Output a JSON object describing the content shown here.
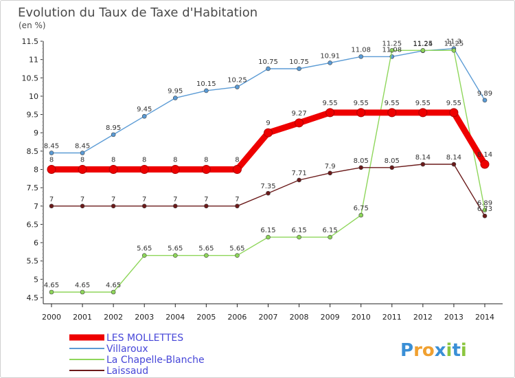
{
  "chart_data": {
    "type": "line",
    "title": "Evolution du Taux de Taxe d'Habitation",
    "subtitle": "(en %)",
    "x": [
      2000,
      2001,
      2002,
      2003,
      2004,
      2005,
      2006,
      2007,
      2008,
      2009,
      2010,
      2011,
      2012,
      2013,
      2014
    ],
    "x_tick_labels": [
      "2000",
      "2001",
      "2002",
      "2003",
      "2004",
      "2005",
      "2006",
      "2007",
      "2008",
      "2009",
      "2010",
      "2011",
      "2012",
      "2013",
      "2014"
    ],
    "ylim": [
      4.5,
      11.5
    ],
    "y_ticks": [
      4.5,
      5,
      5.5,
      6,
      6.5,
      7,
      7.5,
      8,
      8.5,
      9,
      9.5,
      10,
      10.5,
      11,
      11.5
    ],
    "y_tick_labels": [
      "4.5",
      "5",
      "5.5",
      "6",
      "6.5",
      "7",
      "7.5",
      "8",
      "8.5",
      "9",
      "9.5",
      "10",
      "10.5",
      "11",
      "11.5"
    ],
    "grid": false,
    "legend_position": "bottom-left",
    "series": [
      {
        "name": "LES MOLLETTES",
        "color": "#ee0000",
        "values": [
          8,
          8,
          8,
          8,
          8,
          8,
          8,
          9,
          9.27,
          9.55,
          9.55,
          9.55,
          9.55,
          9.55,
          8.14
        ],
        "labels": [
          "8",
          "8",
          "8",
          "8",
          "8",
          "8",
          "8",
          "9",
          "9.27",
          "9.55",
          "9.55",
          "9.55",
          "9.55",
          "9.55",
          "8.14"
        ]
      },
      {
        "name": "Villaroux",
        "color": "#5b9bd5",
        "values": [
          8.45,
          8.45,
          8.95,
          9.45,
          9.95,
          10.15,
          10.25,
          10.75,
          10.75,
          10.91,
          11.08,
          11.08,
          11.24,
          11.3,
          9.89
        ],
        "labels": [
          "8.45",
          "8.45",
          "8.95",
          "9.45",
          "9.95",
          "10.15",
          "10.25",
          "10.75",
          "10.75",
          "10.91",
          "11.08",
          "11.08",
          "11.24",
          "11.3",
          "9.89"
        ]
      },
      {
        "name": "La Chapelle-Blanche",
        "color": "#8ed65a",
        "values": [
          4.65,
          4.65,
          4.65,
          5.65,
          5.65,
          5.65,
          5.65,
          6.15,
          6.15,
          6.15,
          6.75,
          11.25,
          11.25,
          11.25,
          6.89
        ],
        "labels": [
          "4.65",
          "4.65",
          "4.65",
          "5.65",
          "5.65",
          "5.65",
          "5.65",
          "6.15",
          "6.15",
          "6.15",
          "6.75",
          "11.25",
          "11.25",
          "11.25",
          "6.89"
        ]
      },
      {
        "name": "Laissaud",
        "color": "#6b1a1a",
        "values": [
          7,
          7,
          7,
          7,
          7,
          7,
          7,
          7.35,
          7.71,
          7.9,
          8.05,
          8.05,
          8.14,
          8.14,
          6.73
        ],
        "labels": [
          "7",
          "7",
          "7",
          "7",
          "7",
          "7",
          "7",
          "7.35",
          "7.71",
          "7.9",
          "8.05",
          "8.05",
          "8.14",
          "8.14",
          "6.73"
        ]
      }
    ]
  },
  "brand": {
    "letters": [
      "P",
      "r",
      "o",
      "x",
      "i",
      "t",
      "i"
    ],
    "colors": [
      "#3a8fd6",
      "#f0a030",
      "#f0a030",
      "#3a8fd6",
      "#8cc63f",
      "#3a8fd6",
      "#8cc63f"
    ]
  }
}
